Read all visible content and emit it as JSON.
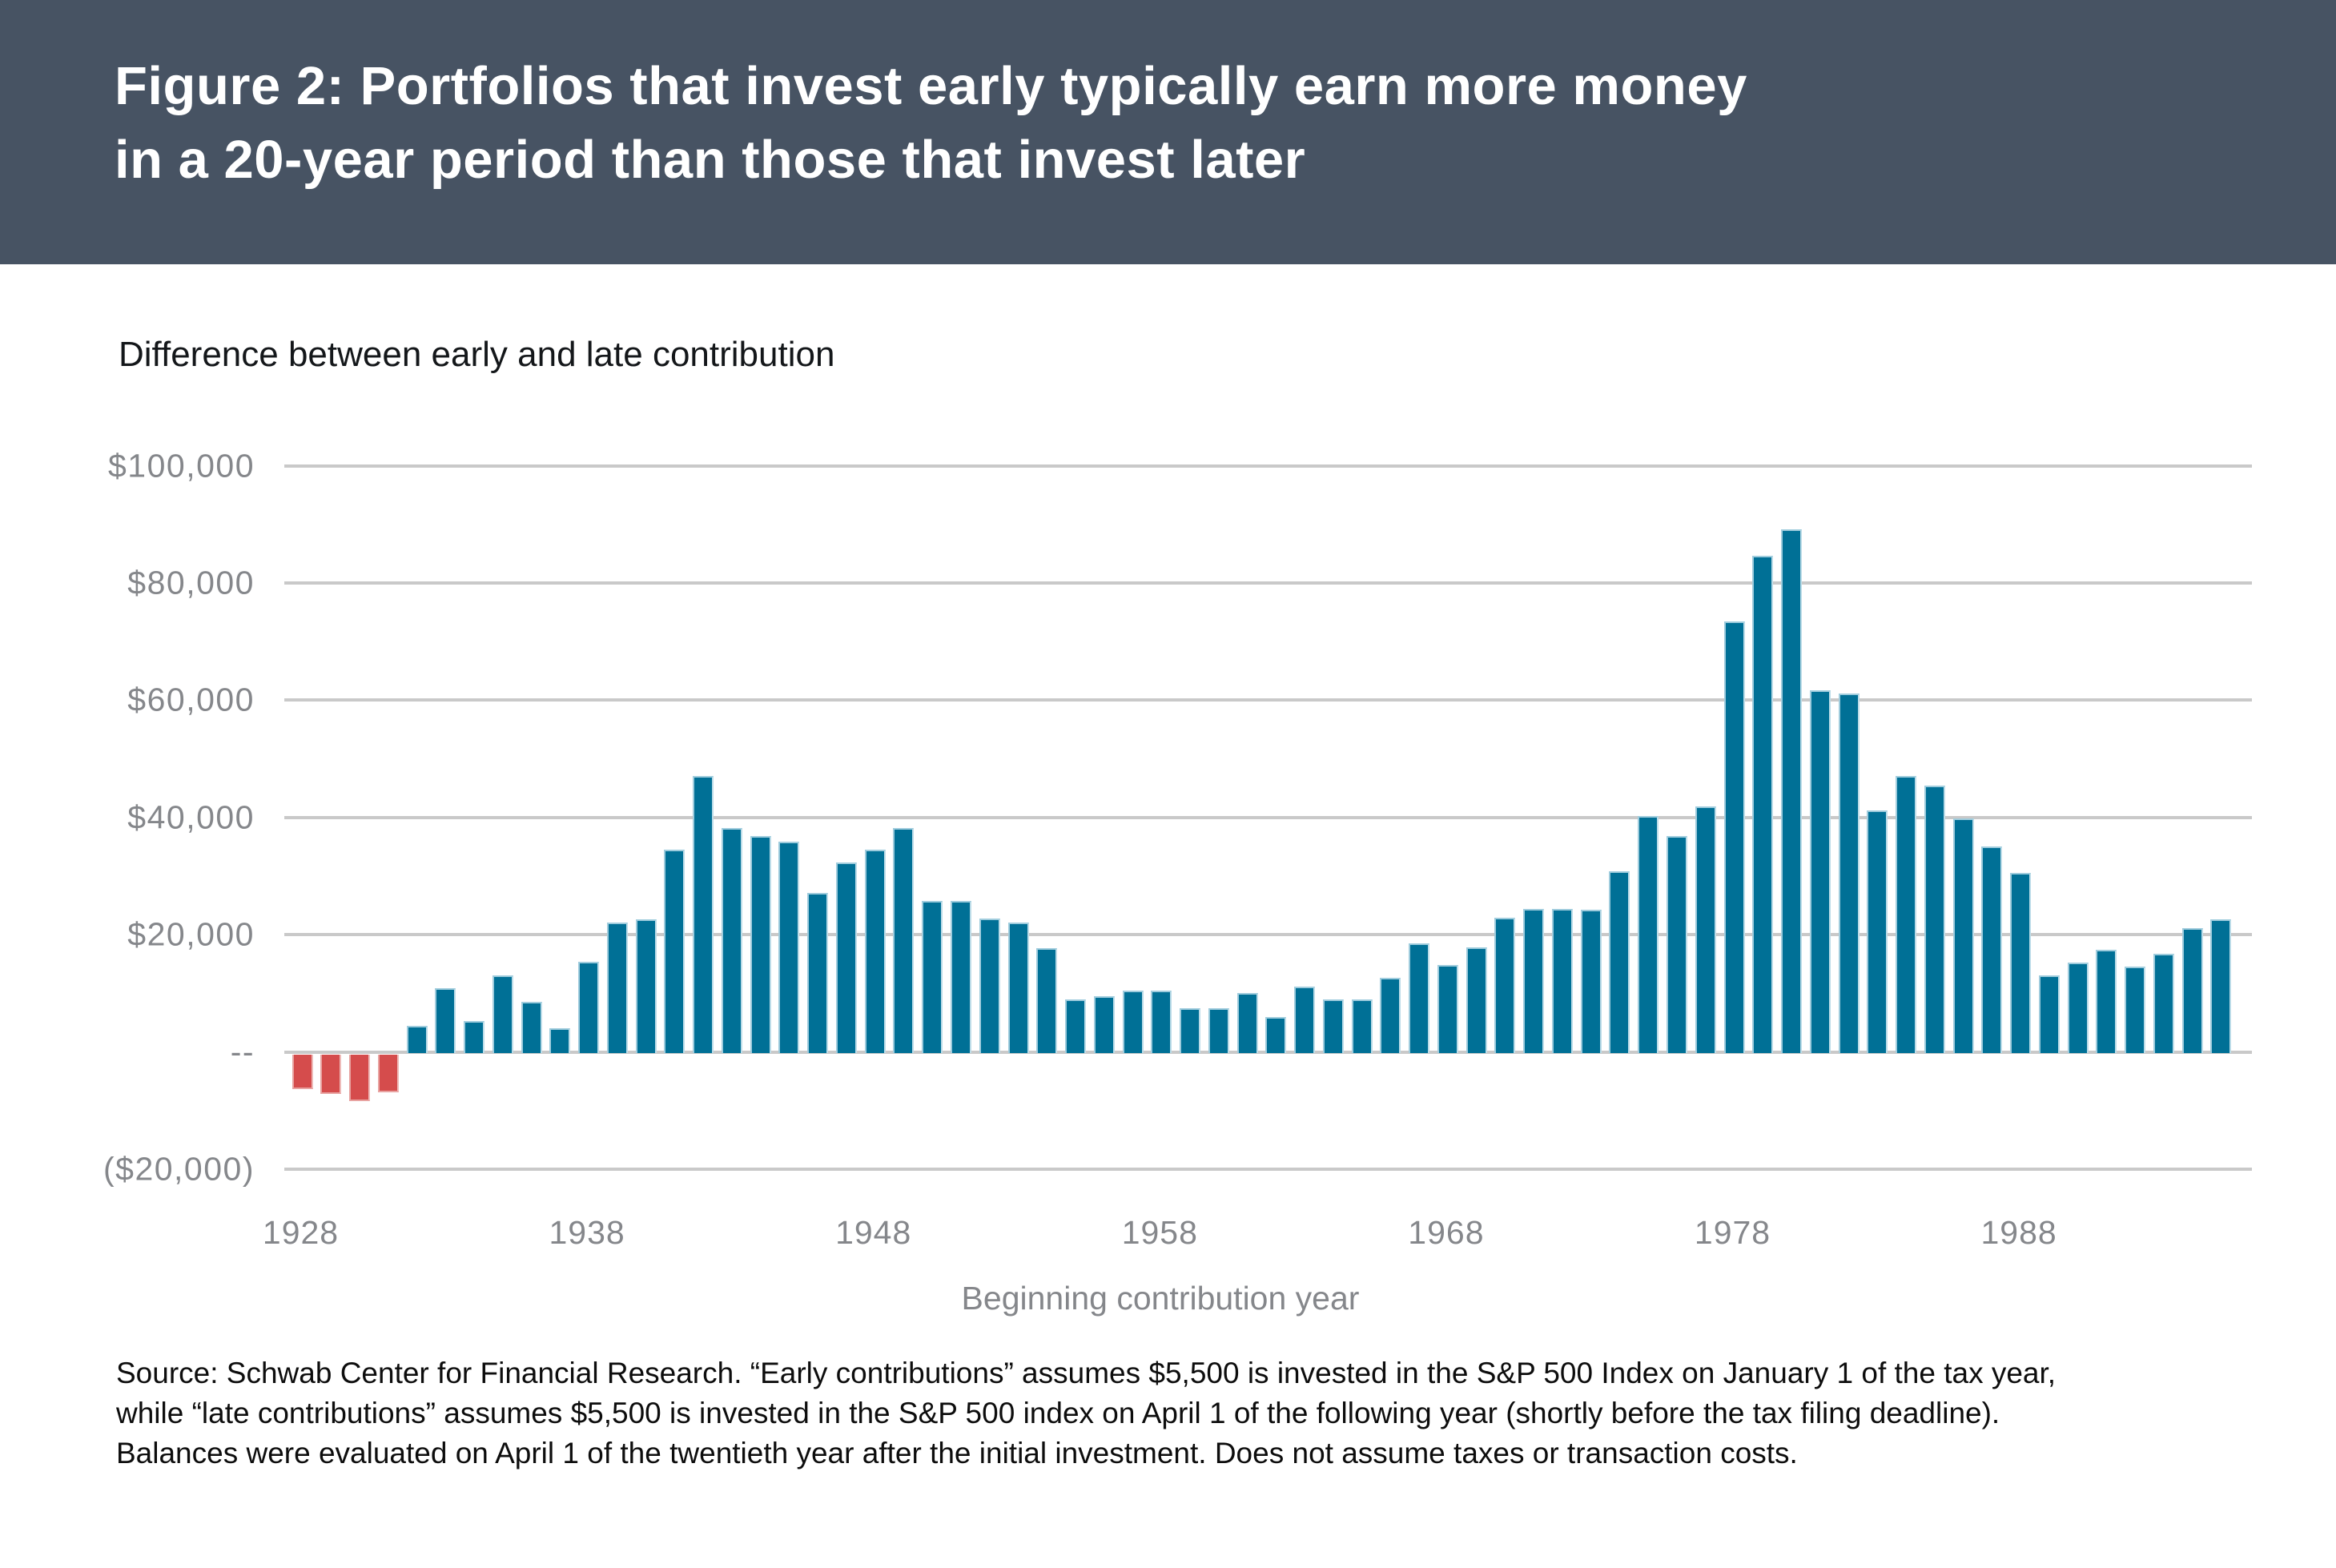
{
  "header": {
    "title_line1": "Figure 2: Portfolios that invest early typically earn more money",
    "title_line2": "in a 20-year period than those that invest later"
  },
  "subtitle": "Difference between early and late contribution",
  "source": {
    "line1": "Source: Schwab Center for Financial Research. “Early contributions” assumes $5,500 is invested in the S&P 500 Index on January 1 of the tax year,",
    "line2": "while “late contributions” assumes $5,500 is invested in the S&P 500 index on April 1 of the following year (shortly before the tax filing deadline).",
    "line3": "Balances were evaluated on April 1 of the twentieth year after the initial investment. Does not assume taxes or transaction costs."
  },
  "colors": {
    "header_bg": "#475363",
    "positive_bar": "#007096",
    "negative_bar": "#d54c4c",
    "gridline": "#c9c9c9",
    "axis_text": "#85878b"
  },
  "chart_data": {
    "type": "bar",
    "title": "Difference between early and late contribution",
    "xlabel": "Beginning contribution year",
    "ylabel": "",
    "ylim": [
      -20000,
      100000
    ],
    "grid": true,
    "start_year": 1928,
    "x_tick_years": [
      1928,
      1938,
      1948,
      1958,
      1968,
      1978,
      1988
    ],
    "y_ticks": [
      {
        "value": 100000,
        "label": "$100,000"
      },
      {
        "value": 80000,
        "label": "$80,000"
      },
      {
        "value": 60000,
        "label": "$60,000"
      },
      {
        "value": 40000,
        "label": "$40,000"
      },
      {
        "value": 20000,
        "label": "$20,000"
      },
      {
        "value": 0,
        "label": "--"
      },
      {
        "value": -20000,
        "label": "($20,000)"
      }
    ],
    "categories": [
      1928,
      1929,
      1930,
      1931,
      1932,
      1933,
      1934,
      1935,
      1936,
      1937,
      1938,
      1939,
      1940,
      1941,
      1942,
      1943,
      1944,
      1945,
      1946,
      1947,
      1948,
      1949,
      1950,
      1951,
      1952,
      1953,
      1954,
      1955,
      1956,
      1957,
      1958,
      1959,
      1960,
      1961,
      1962,
      1963,
      1964,
      1965,
      1966,
      1967,
      1968,
      1969,
      1970,
      1971,
      1972,
      1973,
      1974,
      1975,
      1976,
      1977,
      1978,
      1979,
      1980,
      1981,
      1982,
      1983,
      1984,
      1985,
      1986,
      1987,
      1988,
      1989,
      1990,
      1991,
      1992,
      1993,
      1994,
      1995
    ],
    "values": [
      -5700,
      -6500,
      -7700,
      -6200,
      4400,
      10900,
      5200,
      13100,
      8600,
      4000,
      15400,
      22100,
      22600,
      34500,
      47100,
      38200,
      36800,
      35900,
      27100,
      32300,
      34500,
      38200,
      25800,
      25800,
      22800,
      22000,
      17700,
      8900,
      9500,
      10400,
      10400,
      7400,
      7400,
      10100,
      5900,
      11200,
      8900,
      8900,
      12600,
      18500,
      14800,
      17800,
      22900,
      24400,
      24400,
      24200,
      30800,
      40300,
      36800,
      41900,
      73400,
      84600,
      89100,
      61700,
      61100,
      41200,
      47000,
      45400,
      39800,
      35100,
      30600,
      13100,
      15300,
      17400,
      14500,
      16700,
      21100,
      22600
    ]
  }
}
